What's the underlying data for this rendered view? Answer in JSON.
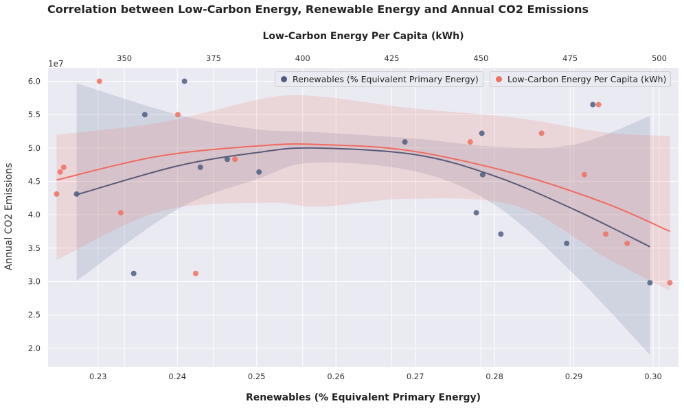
{
  "chart_data": {
    "type": "scatter",
    "title": "Correlation between Low-Carbon Energy, Renewable Energy and Annual CO2 Emissions",
    "xlabel": "Renewables (% Equivalent Primary Energy)",
    "x2label": "Low-Carbon Energy Per Capita (kWh)",
    "ylabel": "Annual CO2 Emissions",
    "y_offset_text": "1e7",
    "xlim": [
      0.2237,
      0.3032
    ],
    "x2lim": [
      328.6,
      505.4
    ],
    "ylim": [
      17200000.0,
      62000000.0
    ],
    "xticks": [
      0.23,
      0.24,
      0.25,
      0.26,
      0.27,
      0.28,
      0.29,
      0.3
    ],
    "xtick_labels": [
      "0.23",
      "0.24",
      "0.25",
      "0.26",
      "0.27",
      "0.28",
      "0.29",
      "0.30"
    ],
    "x2ticks": [
      350,
      375,
      400,
      425,
      450,
      475,
      500
    ],
    "x2tick_labels": [
      "350",
      "375",
      "400",
      "425",
      "450",
      "475",
      "500"
    ],
    "yticks": [
      20000000.0,
      25000000.0,
      30000000.0,
      35000000.0,
      40000000.0,
      45000000.0,
      50000000.0,
      55000000.0,
      60000000.0
    ],
    "ytick_labels": [
      "2.0",
      "2.5",
      "3.0",
      "3.5",
      "4.0",
      "4.5",
      "5.0",
      "5.5",
      "6.0"
    ],
    "grid": true,
    "legend_position": "top-right",
    "series": [
      {
        "name": "Renewables (% Equivalent Primary Energy)",
        "axis": "bottom",
        "color": "#4c5f80",
        "x": [
          0.2273,
          0.2345,
          0.2359,
          0.2409,
          0.2429,
          0.2463,
          0.2503,
          0.2687,
          0.2777,
          0.2784,
          0.2785,
          0.2808,
          0.2891,
          0.2924,
          0.2996
        ],
        "y": [
          43100000.0,
          31200000.0,
          55000000.0,
          60000000.0,
          47100000.0,
          48300000.0,
          46400000.0,
          50900000.0,
          40300000.0,
          52200000.0,
          46000000.0,
          37100000.0,
          35700000.0,
          56500000.0,
          29800000.0
        ],
        "fit_x": [
          0.2273,
          0.24,
          0.25,
          0.257,
          0.27,
          0.28,
          0.29,
          0.2996
        ],
        "fit_y": [
          43000000.0,
          47300000.0,
          49300000.0,
          50000000.0,
          49000000.0,
          45800000.0,
          40800000.0,
          35200000.0
        ],
        "ci_upper": [
          59700000.0,
          55000000.0,
          52800000.0,
          52400000.0,
          51400000.0,
          50200000.0,
          50500000.0,
          54800000.0
        ],
        "ci_lower": [
          30100000.0,
          40800000.0,
          45300000.0,
          47800000.0,
          46500000.0,
          41500000.0,
          31100000.0,
          19000000.0
        ]
      },
      {
        "name": "Low-Carbon Energy Per Capita (kWh)",
        "axis": "top",
        "color": "#f07060",
        "x": [
          331,
          332,
          333,
          343,
          349,
          365,
          370,
          381,
          447,
          467,
          479,
          483,
          485,
          491,
          503
        ],
        "y": [
          43100000.0,
          46400000.0,
          47100000.0,
          60000000.0,
          40300000.0,
          55000000.0,
          31200000.0,
          48300000.0,
          50900000.0,
          52200000.0,
          46000000.0,
          56500000.0,
          37100000.0,
          35700000.0,
          29800000.0
        ],
        "fit_x": [
          331,
          360,
          390,
          405,
          430,
          460,
          485,
          503
        ],
        "fit_y": [
          45200000.0,
          48800000.0,
          50400000.0,
          50500000.0,
          49600000.0,
          46100000.0,
          41700000.0,
          37500000.0
        ],
        "ci_upper": [
          52000000.0,
          53800000.0,
          57500000.0,
          57700000.0,
          56000000.0,
          54500000.0,
          52300000.0,
          51800000.0
        ],
        "ci_lower": [
          33200000.0,
          40500000.0,
          41800000.0,
          41200000.0,
          42400000.0,
          41300000.0,
          33600000.0,
          28600000.0
        ]
      }
    ]
  }
}
